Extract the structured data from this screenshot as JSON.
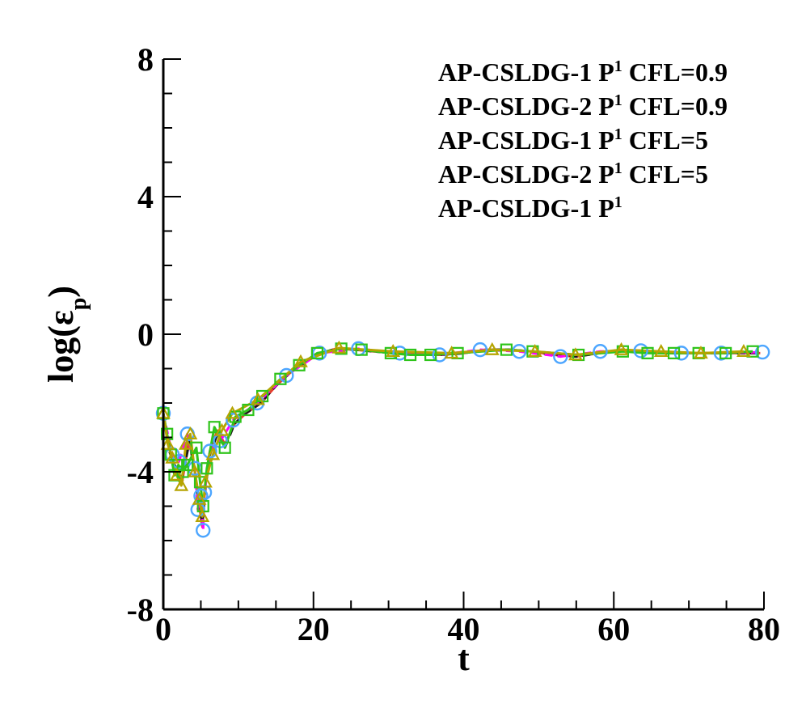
{
  "chart_data": {
    "type": "line",
    "title": "",
    "xlabel": "t",
    "ylabel": "log(ε",
    "ylabel_sub": "p",
    "ylabel_close": ")",
    "xlim": [
      0,
      80
    ],
    "ylim": [
      -8,
      8
    ],
    "x_ticks": [
      0,
      20,
      40,
      60,
      80
    ],
    "x_tick_labels": [
      "0",
      "20",
      "40",
      "60",
      "80"
    ],
    "y_ticks": [
      -8,
      -4,
      0,
      4,
      8
    ],
    "y_tick_labels": [
      "-8",
      "-4",
      "0",
      "4",
      "8"
    ],
    "grid": false,
    "legend_position": "top-right",
    "series": [
      {
        "name_parts": [
          "AP-CSLDG-1 P",
          "1",
          " CFL=0.9"
        ],
        "color": "#e63c2e",
        "line": "solid",
        "marker": "none",
        "x": [
          0,
          0.8,
          1.5,
          2.5,
          3.5,
          4.2,
          4.8,
          5.2,
          5.6,
          6.2,
          7.2,
          8.2,
          9.5,
          11,
          13,
          15,
          17,
          19,
          21,
          23,
          25.5,
          28,
          31,
          34,
          37,
          40,
          43,
          46,
          49,
          52,
          55,
          58,
          61,
          64,
          67,
          70,
          73,
          76,
          79.5
        ],
        "y": [
          -2.3,
          -3.3,
          -3.9,
          -4.3,
          -3.0,
          -4.0,
          -5.0,
          -5.6,
          -4.4,
          -3.4,
          -2.8,
          -3.2,
          -2.6,
          -2.3,
          -2.0,
          -1.5,
          -1.1,
          -0.8,
          -0.55,
          -0.42,
          -0.45,
          -0.5,
          -0.55,
          -0.6,
          -0.6,
          -0.55,
          -0.45,
          -0.45,
          -0.5,
          -0.6,
          -0.65,
          -0.55,
          -0.45,
          -0.5,
          -0.55,
          -0.55,
          -0.55,
          -0.55,
          -0.55
        ]
      },
      {
        "name_parts": [
          "AP-CSLDG-2 P",
          "1",
          " CFL=0.9"
        ],
        "color": "#1a1a1a",
        "line": "dashed",
        "marker": "none",
        "x": [
          0,
          0.8,
          1.5,
          2.5,
          3.5,
          4.2,
          4.8,
          5.2,
          5.6,
          6.2,
          7.2,
          8.2,
          9.5,
          11,
          13,
          15,
          17,
          19,
          21,
          23,
          25.5,
          28,
          31,
          34,
          37,
          40,
          43,
          46,
          49,
          52,
          55,
          58,
          61,
          64,
          67,
          70,
          73,
          76,
          79.5
        ],
        "y": [
          -2.3,
          -3.4,
          -3.8,
          -4.2,
          -3.1,
          -4.1,
          -4.9,
          -5.5,
          -4.5,
          -3.5,
          -2.9,
          -3.3,
          -2.6,
          -2.3,
          -2.0,
          -1.5,
          -1.1,
          -0.8,
          -0.55,
          -0.42,
          -0.45,
          -0.5,
          -0.55,
          -0.6,
          -0.6,
          -0.55,
          -0.45,
          -0.45,
          -0.5,
          -0.6,
          -0.65,
          -0.55,
          -0.45,
          -0.5,
          -0.55,
          -0.55,
          -0.55,
          -0.55,
          -0.55
        ]
      },
      {
        "name_parts": [
          "AP-CSLDG-1 P",
          "1",
          " CFL=5"
        ],
        "color": "#b5a400",
        "line": "solid",
        "marker": "triangle",
        "x": [
          0,
          0.6,
          1.2,
          1.8,
          2.4,
          3.0,
          3.6,
          4.2,
          4.8,
          5.2,
          5.6,
          6.6,
          7.8,
          9.2,
          12.6,
          18.3,
          23.4,
          30.6,
          38.4,
          43.8,
          49.5,
          54.9,
          61.0,
          66.3,
          71.6,
          77.3
        ],
        "y": [
          -2.3,
          -3.2,
          -3.6,
          -4.1,
          -4.4,
          -3.2,
          -2.9,
          -4.0,
          -4.8,
          -5.3,
          -4.3,
          -3.5,
          -2.8,
          -2.3,
          -1.9,
          -0.8,
          -0.4,
          -0.5,
          -0.55,
          -0.45,
          -0.5,
          -0.6,
          -0.45,
          -0.5,
          -0.55,
          -0.5
        ]
      },
      {
        "name_parts": [
          "AP-CSLDG-2 P",
          "1",
          " CFL=5"
        ],
        "color": "#2ec41a",
        "line": "solid",
        "marker": "square",
        "x": [
          0,
          0.5,
          1.0,
          1.5,
          2.0,
          2.6,
          3.2,
          4.4,
          4.9,
          5.3,
          5.8,
          6.8,
          8.2,
          9.6,
          11.3,
          13.2,
          15.6,
          18.1,
          20.5,
          23.7,
          26.4,
          30.3,
          32.9,
          35.6,
          39.2,
          45.7,
          49.2,
          55.3,
          61.2,
          64.5,
          68.0,
          71.3,
          74.9,
          78.5
        ],
        "y": [
          -2.3,
          -2.9,
          -3.5,
          -4.1,
          -3.8,
          -4.0,
          -3.8,
          -3.3,
          -4.3,
          -5.0,
          -3.9,
          -2.7,
          -3.3,
          -2.4,
          -2.2,
          -1.8,
          -1.3,
          -0.9,
          -0.55,
          -0.42,
          -0.45,
          -0.55,
          -0.6,
          -0.6,
          -0.55,
          -0.45,
          -0.5,
          -0.6,
          -0.5,
          -0.55,
          -0.55,
          -0.55,
          -0.55,
          -0.5
        ]
      },
      {
        "name_parts": [
          "AP-CSLDG-1 P",
          "1",
          ""
        ],
        "color": "#ff00ff",
        "line": "dashed",
        "marker": "circle",
        "circle_color": "#4da6ff",
        "x": [
          0,
          1.2,
          2.1,
          3.2,
          4.2,
          4.6,
          5.0,
          5.3,
          5.5,
          6.2,
          7.6,
          9.3,
          12.5,
          16.4,
          20.8,
          26.0,
          31.5,
          36.8,
          42.2,
          47.4,
          52.9,
          58.2,
          63.6,
          69.0,
          74.3,
          79.8
        ],
        "y": [
          -2.3,
          -3.5,
          -3.7,
          -2.9,
          -3.9,
          -5.1,
          -4.7,
          -5.7,
          -4.6,
          -3.4,
          -3.1,
          -2.5,
          -2.0,
          -1.2,
          -0.55,
          -0.42,
          -0.55,
          -0.6,
          -0.45,
          -0.5,
          -0.65,
          -0.5,
          -0.48,
          -0.55,
          -0.55,
          -0.52
        ]
      }
    ]
  }
}
